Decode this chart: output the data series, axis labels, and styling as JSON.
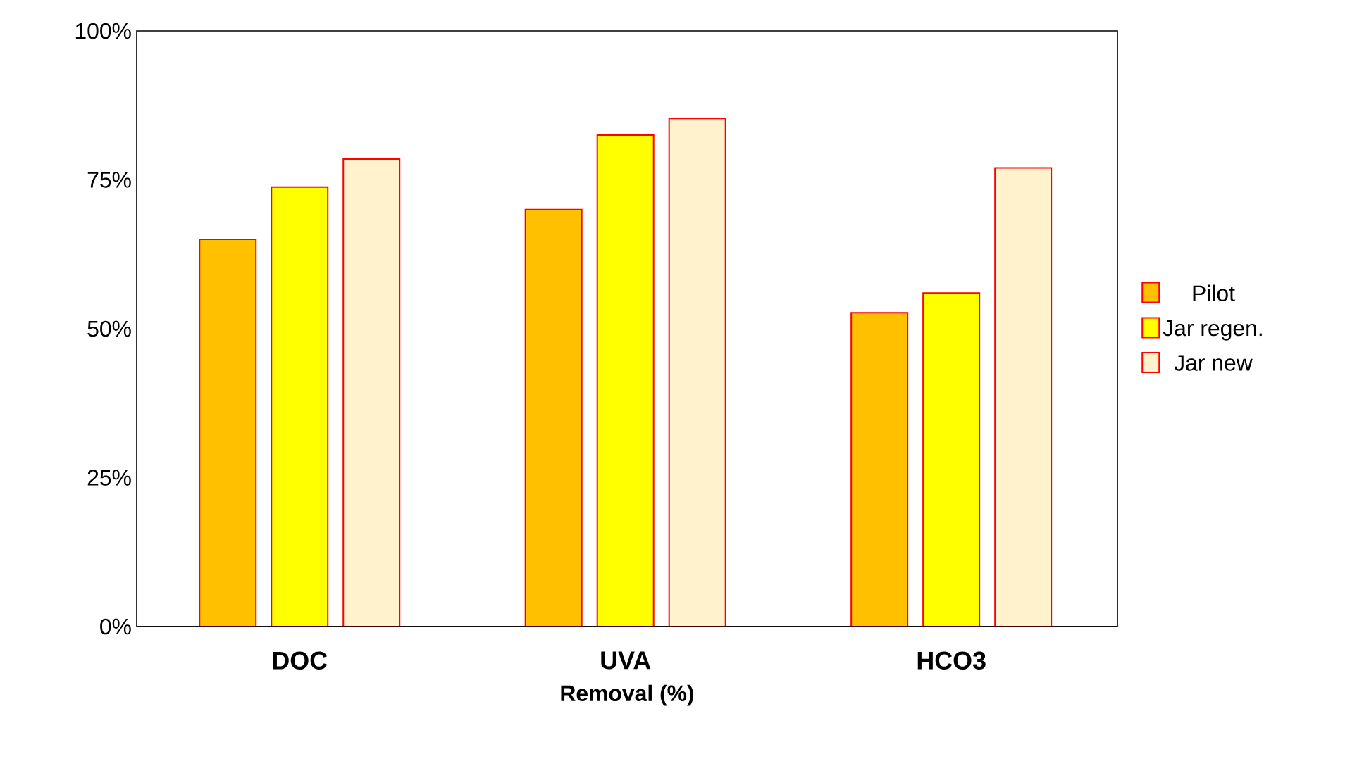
{
  "chart_data": {
    "type": "bar",
    "xlabel": "Removal (%)",
    "categories": [
      "DOC",
      "UVA",
      "HCO3"
    ],
    "series": [
      {
        "name": "Pilot",
        "color": "#ffc000",
        "values": [
          65,
          70,
          52.7
        ]
      },
      {
        "name": "Jar regen.",
        "color": "#ffff00",
        "values": [
          73.8,
          82.5,
          56
        ]
      },
      {
        "name": "Jar new",
        "color": "#fff2cc",
        "values": [
          78.5,
          85.3,
          77
        ]
      }
    ],
    "ylim": [
      0,
      100
    ],
    "yticks": [
      {
        "value": 0,
        "label": "0%"
      },
      {
        "value": 25,
        "label": "25%"
      },
      {
        "value": 50,
        "label": "50%"
      },
      {
        "value": 75,
        "label": "75%"
      },
      {
        "value": 100,
        "label": "100%"
      }
    ],
    "grid": false,
    "legend": "right"
  }
}
